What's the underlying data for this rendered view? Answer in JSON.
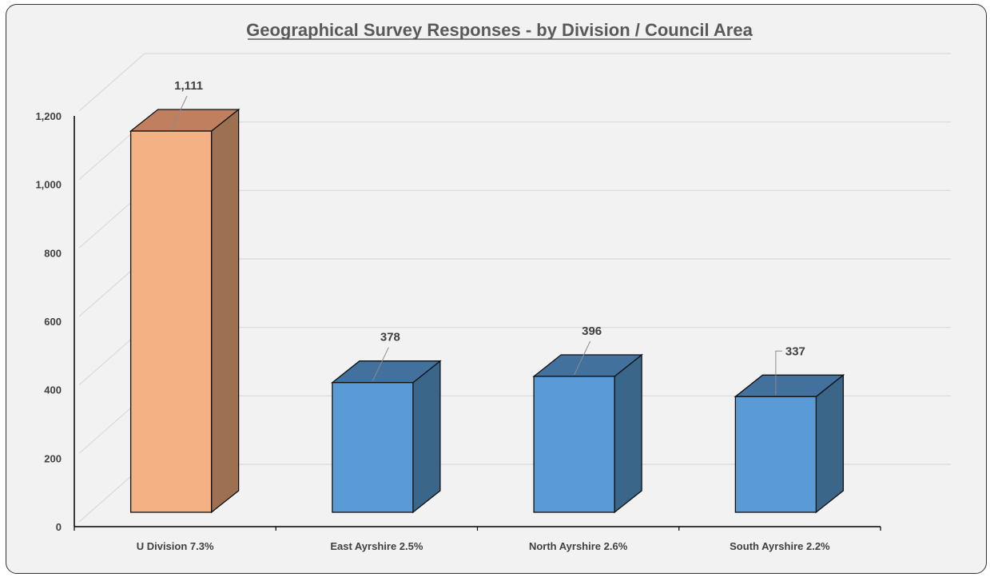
{
  "chart_data": {
    "type": "bar",
    "title": "Geographical Survey Responses - by Division / Council Area",
    "xlabel": "",
    "ylabel": "",
    "ylim": [
      0,
      1200
    ],
    "y_ticks": [
      "0",
      "200",
      "400",
      "600",
      "800",
      "1,000",
      "1,200"
    ],
    "y_tick_values": [
      0,
      200,
      400,
      600,
      800,
      1000,
      1200
    ],
    "categories": [
      "U Division 7.3%",
      "East Ayrshire 2.5%",
      "North Ayrshire 2.6%",
      "South Ayrshire 2.2%"
    ],
    "values": [
      1111,
      378,
      396,
      337
    ],
    "data_labels": [
      "1,111",
      "378",
      "396",
      "337"
    ],
    "grid": true,
    "legend": "none",
    "style": "3d-column",
    "colors": {
      "highlight_front": "#f4b183",
      "highlight_top": "#c07f5e",
      "highlight_side": "#9c7051",
      "bar_front": "#5b9bd5",
      "bar_top": "#41719c",
      "bar_side": "#3a6689",
      "gridline": "#d9d9d9",
      "background": "#f2f2f2"
    }
  }
}
